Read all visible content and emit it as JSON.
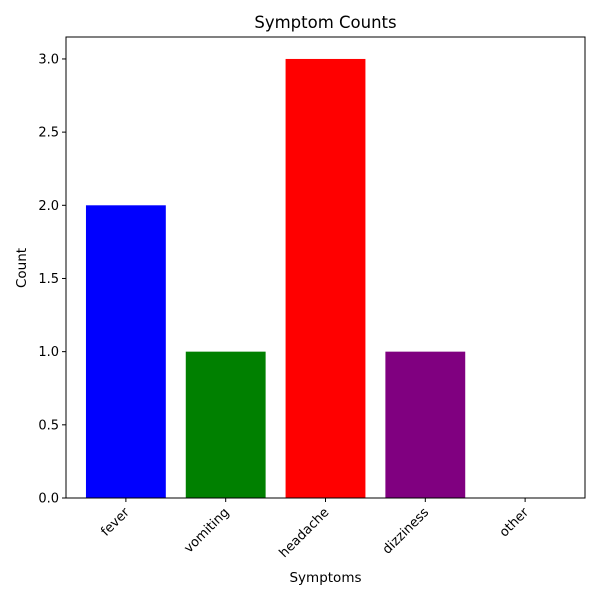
{
  "chart_data": {
    "type": "bar",
    "title": "Symptom Counts",
    "xlabel": "Symptoms",
    "ylabel": "Count",
    "categories": [
      "fever",
      "vomiting",
      "headache",
      "dizziness",
      "other"
    ],
    "values": [
      2,
      1,
      3,
      1,
      0
    ],
    "colors": [
      "#0000ff",
      "#008000",
      "#ff0000",
      "#800080",
      "#ffa500"
    ],
    "ylim": [
      0,
      3.15
    ],
    "yticks": [
      0.0,
      0.5,
      1.0,
      1.5,
      2.0,
      2.5,
      3.0
    ],
    "ytick_labels": [
      "0.0",
      "0.5",
      "1.0",
      "1.5",
      "2.0",
      "2.5",
      "3.0"
    ],
    "grid": false,
    "legend": "none"
  }
}
